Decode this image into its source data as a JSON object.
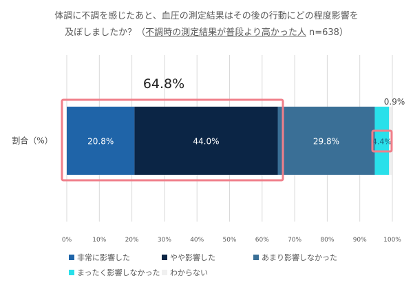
{
  "title": {
    "line1": "体調に不調を感じたあと、血圧の測定結果はその後の行動にどの程度影響を",
    "line2_prefix": "及ぼしましたか？（",
    "line2_underlined": "不調時の測定結果が普段より高かった人",
    "line2_suffix": " n=638）"
  },
  "chart_data": {
    "type": "bar",
    "orientation": "horizontal-stacked-100",
    "categories": [
      "割合（%）"
    ],
    "series": [
      {
        "name": "非常に影響した",
        "values": [
          20.8
        ],
        "label": "20.8%",
        "color": "#1f64a8"
      },
      {
        "name": "やや影響した",
        "values": [
          44.0
        ],
        "label": "44.0%",
        "color": "#0b2545"
      },
      {
        "name": "あまり影響しなかった",
        "values": [
          29.8
        ],
        "label": "29.8%",
        "color": "#3a6f96"
      },
      {
        "name": "まったく影響しなかった",
        "values": [
          4.4
        ],
        "label": "4.4%",
        "color": "#29e0ea"
      },
      {
        "name": "わからない",
        "values": [
          0.9
        ],
        "label": "0.9%",
        "color": "#f0f0f0"
      }
    ],
    "xlim": [
      0,
      100
    ],
    "x_ticks": [
      "0%",
      "10%",
      "20%",
      "30%",
      "40%",
      "50%",
      "60%",
      "70%",
      "80%",
      "90%",
      "100%"
    ],
    "grid": "vertical",
    "legend_position": "bottom",
    "annotations": {
      "combined_total": "64.8%"
    },
    "highlight_color": "#f07f8a"
  }
}
